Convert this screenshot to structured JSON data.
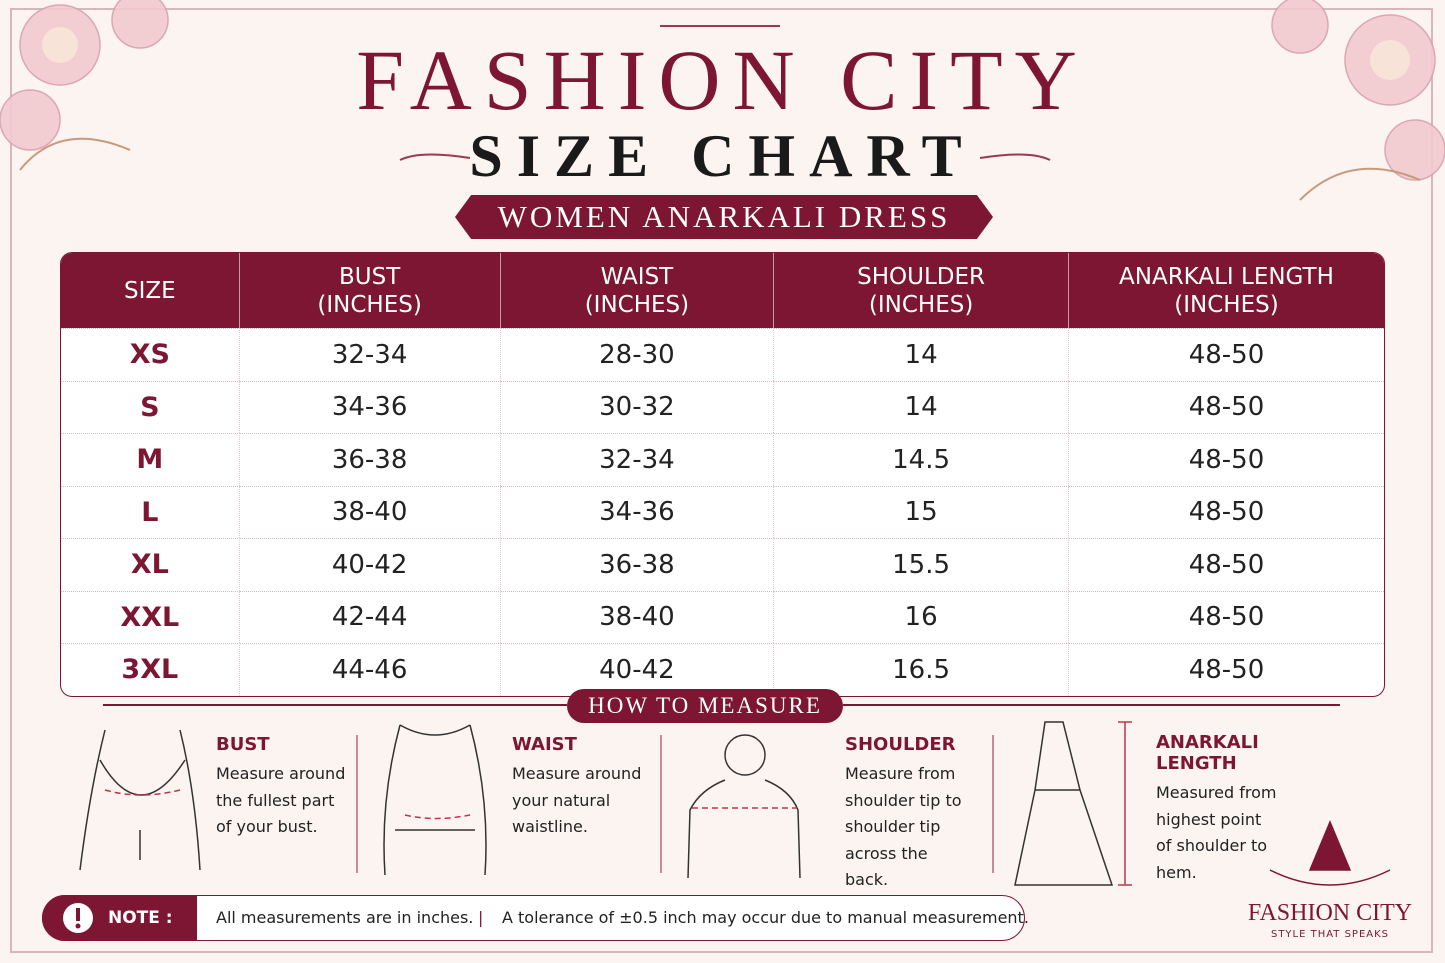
{
  "header": {
    "title": "FASHION CITY",
    "subtitle": "SIZE CHART",
    "banner": "WOMEN ANARKALI DRESS"
  },
  "table": {
    "columns": [
      {
        "label": "SIZE"
      },
      {
        "label": "BUST",
        "unit": "(INCHES)"
      },
      {
        "label": "WAIST",
        "unit": "(INCHES)"
      },
      {
        "label": "SHOULDER",
        "unit": "(INCHES)"
      },
      {
        "label": "ANARKALI LENGTH",
        "unit": "(INCHES)"
      }
    ],
    "rows": [
      [
        "XS",
        "32-34",
        "28-30",
        "14",
        "48-50"
      ],
      [
        "S",
        "34-36",
        "30-32",
        "14",
        "48-50"
      ],
      [
        "M",
        "36-38",
        "32-34",
        "14.5",
        "48-50"
      ],
      [
        "L",
        "38-40",
        "34-36",
        "15",
        "48-50"
      ],
      [
        "XL",
        "40-42",
        "36-38",
        "15.5",
        "48-50"
      ],
      [
        "XXL",
        "42-44",
        "38-40",
        "16",
        "48-50"
      ],
      [
        "3XL",
        "44-46",
        "40-42",
        "16.5",
        "48-50"
      ]
    ]
  },
  "measure": {
    "title": "HOW TO MEASURE",
    "items": [
      {
        "title": "BUST",
        "text": "Measure around the fullest part of your bust."
      },
      {
        "title": "WAIST",
        "text": "Measure around your natural waistline."
      },
      {
        "title": "SHOULDER",
        "text": "Measure from shoulder tip to shoulder tip across the back."
      },
      {
        "title": "ANARKALI LENGTH",
        "text": "Measured from highest point of shoulder to hem."
      }
    ]
  },
  "note": {
    "label": "NOTE :",
    "items": [
      "All measurements are in inches.",
      "A tolerance of ±0.5 inch may occur due to manual measurement."
    ]
  },
  "logo": {
    "name": "FASHION CITY",
    "tagline": "STYLE THAT SPEAKS"
  }
}
